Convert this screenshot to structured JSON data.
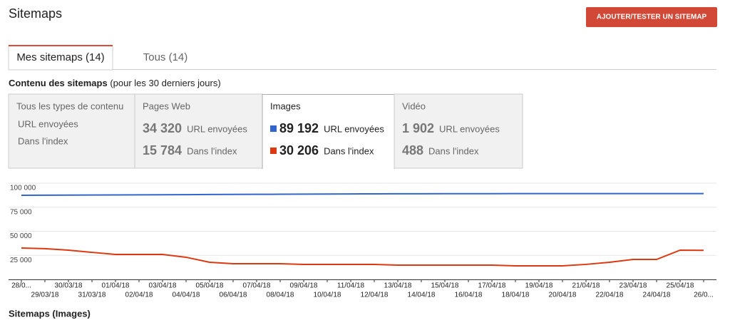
{
  "header": {
    "title": "Sitemaps",
    "button": "AJOUTER/TESTER UN SITEMAP"
  },
  "tabs": [
    "Mes sitemaps (14)",
    "Tous (14)"
  ],
  "summary": {
    "title": "Contenu des sitemaps",
    "subtitle": "(pour les 30 derniers jours)",
    "boxes": [
      {
        "title": "Tous les types de contenu",
        "rows": [
          {
            "label": "URL envoyées"
          },
          {
            "label": "Dans l'index"
          }
        ]
      },
      {
        "title": "Pages Web",
        "rows": [
          {
            "value": "34 320",
            "label": "URL envoyées"
          },
          {
            "value": "15 784",
            "label": "Dans l'index"
          }
        ]
      },
      {
        "title": "Images",
        "rows": [
          {
            "value": "89 192"
          },
          {
            "value": "30 206"
          }
        ]
      },
      {
        "title": "Vidéo",
        "rows": [
          {
            "value": "1 902",
            "label": "URL envoyées"
          },
          {
            "value": "488",
            "label": "Dans l'index"
          }
        ]
      }
    ]
  },
  "chart_data": {
    "type": "line",
    "categories": [
      "28/0...",
      "29/03/18",
      "30/03/18",
      "31/03/18",
      "01/04/18",
      "02/04/18",
      "03/04/18",
      "04/04/18",
      "05/04/18",
      "06/04/18",
      "07/04/18",
      "08/04/18",
      "09/04/18",
      "10/04/18",
      "11/04/18",
      "12/04/18",
      "13/04/18",
      "14/04/18",
      "15/04/18",
      "16/04/18",
      "17/04/18",
      "18/04/18",
      "19/04/18",
      "20/04/18",
      "21/04/18",
      "22/04/18",
      "23/04/18",
      "24/04/18",
      "25/04/18",
      "26/0..."
    ],
    "series": [
      {
        "name": "URL envoyées",
        "color": "#3366cc",
        "values": [
          87400,
          87500,
          87600,
          87700,
          87800,
          87900,
          88000,
          88100,
          88200,
          88300,
          88400,
          88500,
          88600,
          88700,
          88800,
          88900,
          89000,
          89000,
          89100,
          89100,
          89100,
          89200,
          89200,
          89200,
          89200,
          89200,
          89200,
          89200,
          89200,
          89192
        ]
      },
      {
        "name": "Dans l'index",
        "color": "#dc3912",
        "values": [
          32600,
          31900,
          30400,
          28100,
          25900,
          25900,
          25900,
          23000,
          17800,
          16300,
          16300,
          16300,
          15600,
          15600,
          15600,
          15600,
          14800,
          14800,
          14800,
          14800,
          14800,
          14100,
          14100,
          14100,
          15600,
          17800,
          20700,
          20700,
          30400,
          30206
        ]
      }
    ],
    "ylim": [
      0,
      100000
    ],
    "yticks": [
      {
        "value": 25000,
        "label": "25 000"
      },
      {
        "value": 50000,
        "label": "50 000"
      },
      {
        "value": 75000,
        "label": "75 000"
      },
      {
        "value": 100000,
        "label": "100 000"
      }
    ],
    "grid": true
  },
  "footer": {
    "title": "Sitemaps (Images)"
  }
}
